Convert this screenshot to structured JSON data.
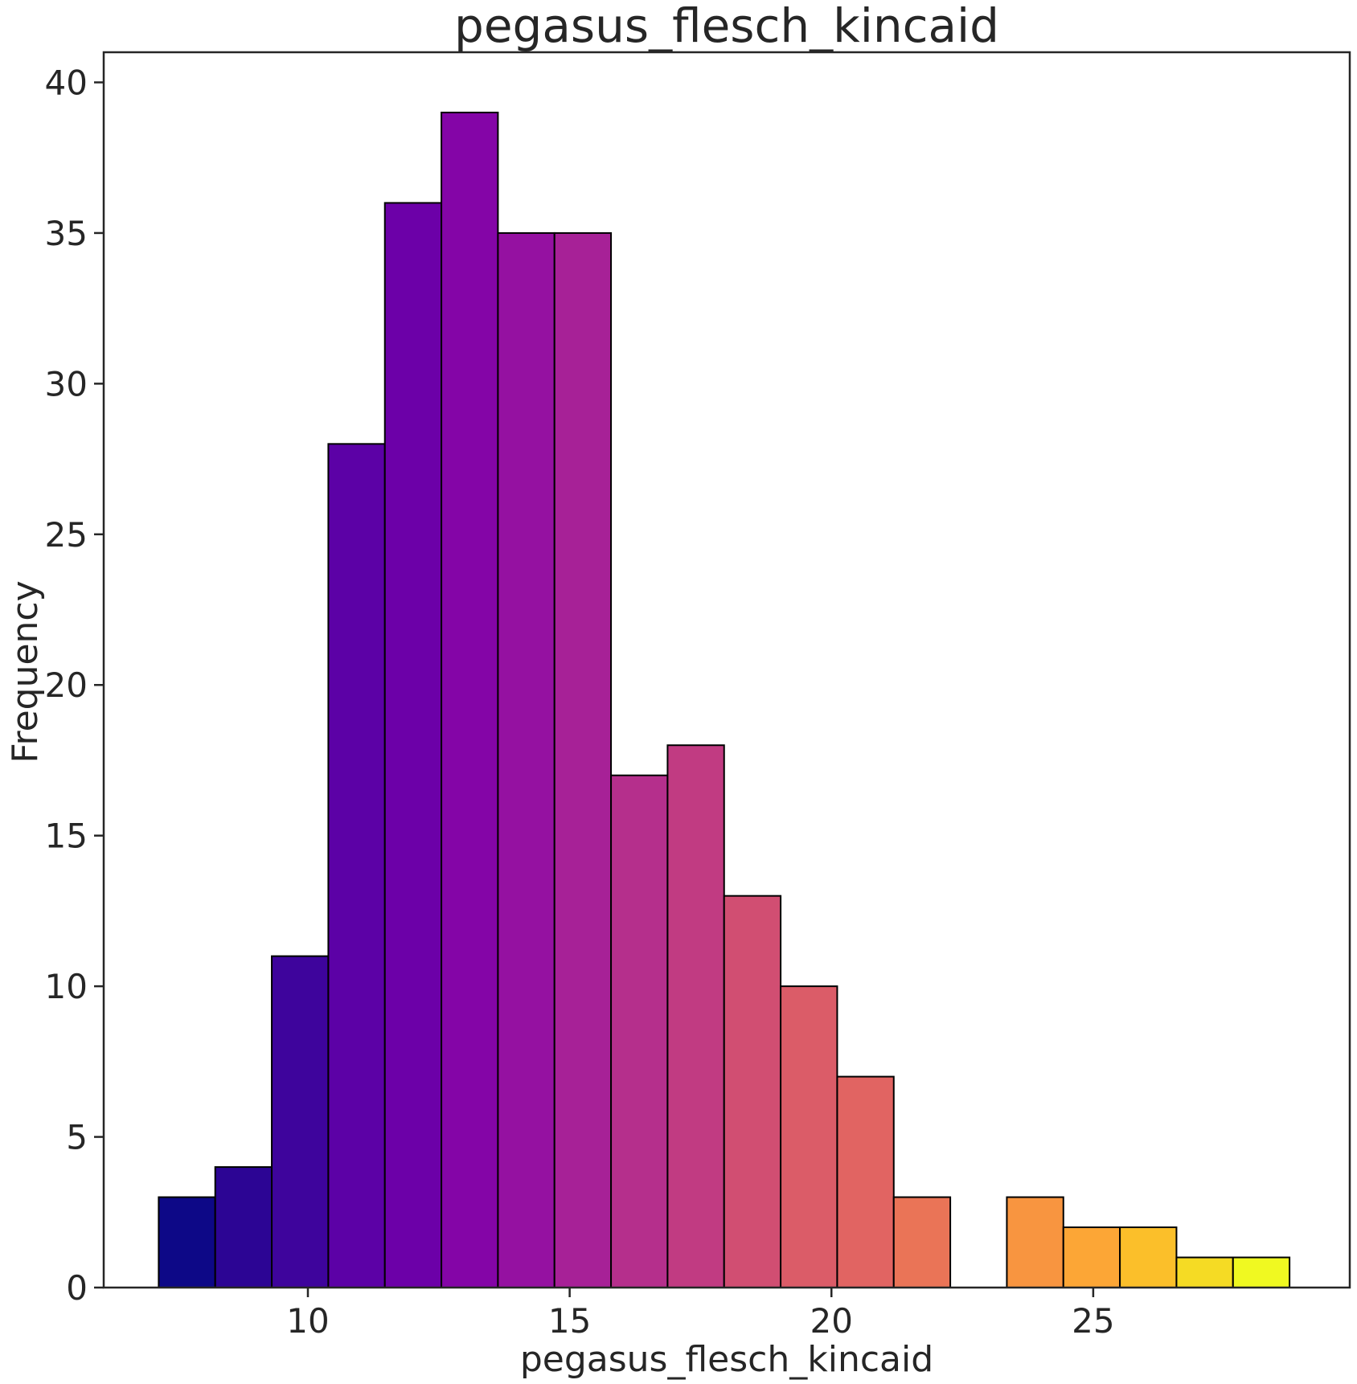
{
  "chart_data": {
    "type": "bar",
    "title": "pegasus_flesch_kincaid",
    "xlabel": "pegasus_flesch_kincaid",
    "ylabel": "Frequency",
    "xlim": [
      6.1,
      29.9
    ],
    "ylim": [
      0,
      41
    ],
    "xticks": [
      10,
      15,
      20,
      25
    ],
    "yticks": [
      0,
      5,
      10,
      15,
      20,
      25,
      30,
      35,
      40
    ],
    "bin_start": 7.15,
    "bin_width": 1.08,
    "values": [
      3,
      4,
      11,
      28,
      36,
      39,
      35,
      35,
      17,
      18,
      13,
      10,
      7,
      3,
      0,
      3,
      2,
      2,
      1,
      1
    ],
    "colors": [
      "#0d0887",
      "#2c0594",
      "#3e049c",
      "#5c01a6",
      "#6c00a8",
      "#8405a7",
      "#9511a1",
      "#a72197",
      "#b52f8c",
      "#c13b82",
      "#d14e72",
      "#db5c68",
      "#e16462",
      "#ea7457",
      "#f2844b",
      "#f89540",
      "#fca636",
      "#fbbf2a",
      "#f5db24",
      "#f0f921"
    ],
    "grid": false,
    "legend": "none"
  }
}
